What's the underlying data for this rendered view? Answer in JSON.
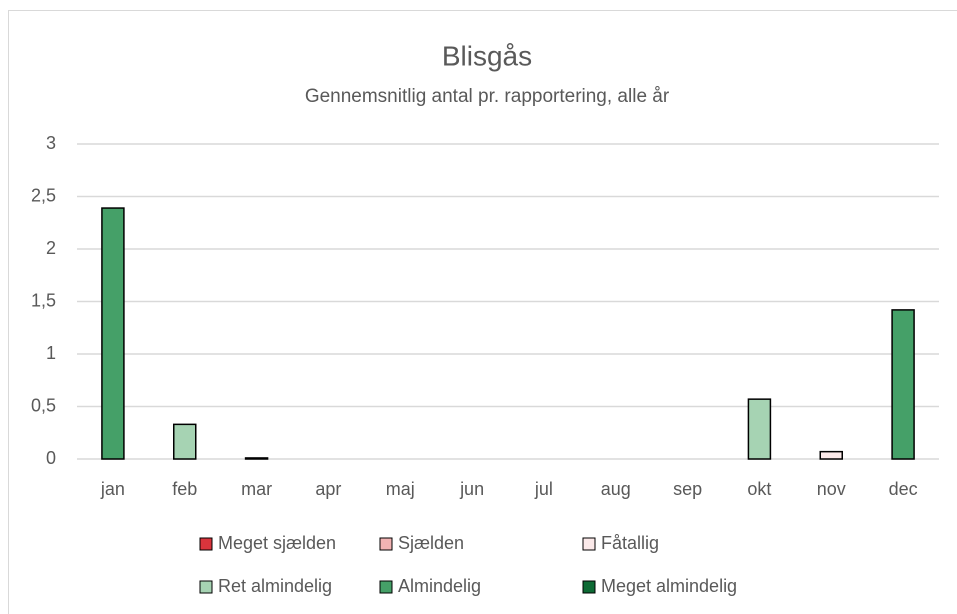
{
  "chart_data": {
    "type": "bar",
    "title": "Blisgås",
    "subtitle": "Gennemsnitlig antal pr. rapportering, alle år",
    "categories": [
      "jan",
      "feb",
      "mar",
      "apr",
      "maj",
      "jun",
      "jul",
      "aug",
      "sep",
      "okt",
      "nov",
      "dec"
    ],
    "series": [
      {
        "name": "Meget sjælden",
        "color": "#d9343c",
        "values": [
          null,
          null,
          null,
          null,
          null,
          null,
          null,
          null,
          null,
          null,
          null,
          null
        ]
      },
      {
        "name": "Sjælden",
        "color": "#f2b3b3",
        "values": [
          null,
          null,
          null,
          null,
          null,
          null,
          null,
          null,
          null,
          null,
          null,
          null
        ]
      },
      {
        "name": "Fåtallig",
        "color": "#fbe9e9",
        "values": [
          null,
          null,
          0.01,
          null,
          null,
          null,
          null,
          null,
          null,
          null,
          0.07,
          null
        ]
      },
      {
        "name": "Ret almindelig",
        "color": "#a6d3b3",
        "values": [
          null,
          0.33,
          null,
          null,
          null,
          null,
          null,
          null,
          null,
          0.57,
          null,
          null
        ]
      },
      {
        "name": "Almindelig",
        "color": "#45a068",
        "values": [
          2.39,
          null,
          null,
          null,
          null,
          null,
          null,
          null,
          null,
          null,
          null,
          1.42
        ]
      },
      {
        "name": "Meget almindelig",
        "color": "#0d6a34",
        "values": [
          null,
          null,
          null,
          null,
          null,
          null,
          null,
          null,
          null,
          null,
          null,
          null
        ]
      }
    ],
    "ylim": [
      0,
      3
    ],
    "yticks": [
      0,
      {
        "value": 0.5,
        "label": "0,5"
      },
      1,
      {
        "value": 1.5,
        "label": "1,5"
      },
      2,
      {
        "value": 2.5,
        "label": "2,5"
      },
      3
    ],
    "grid": true,
    "legend": "bottom"
  }
}
